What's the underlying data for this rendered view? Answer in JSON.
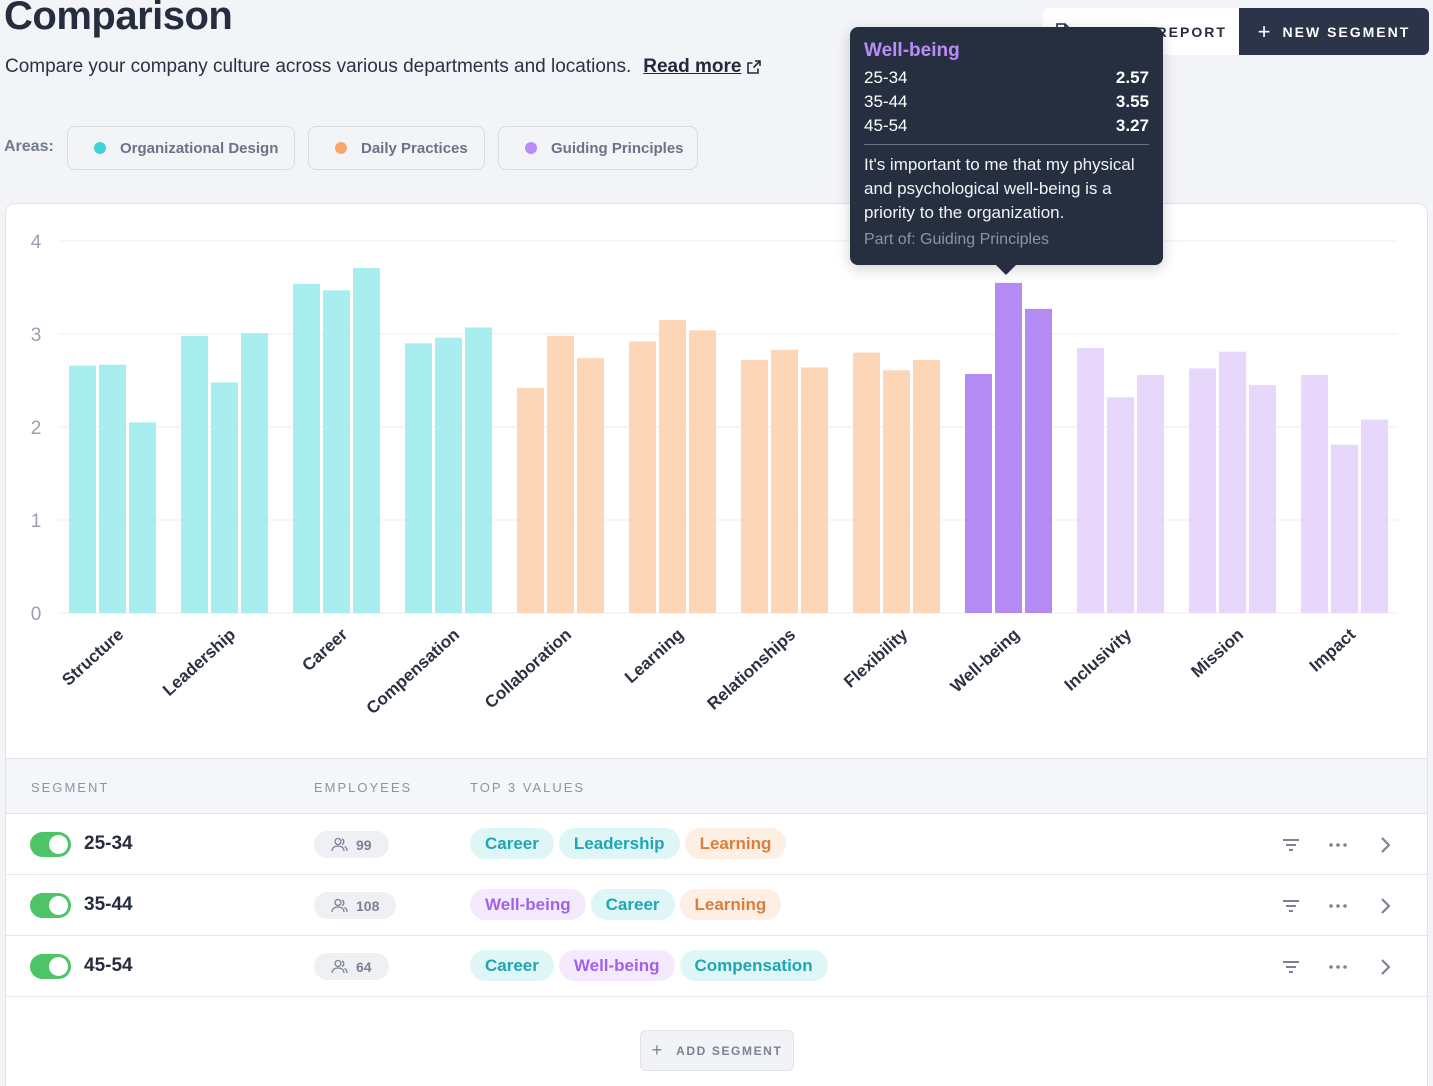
{
  "header": {
    "title": "Comparison",
    "subtitle": "Compare your company culture across various departments and locations.",
    "read_more": "Read more",
    "export_label": "EXPORT REPORT",
    "new_segment_label": "NEW SEGMENT"
  },
  "areas": {
    "label": "Areas:",
    "items": [
      {
        "label": "Organizational Design",
        "color": "#3ed3d9"
      },
      {
        "label": "Daily Practices",
        "color": "#f7a66a"
      },
      {
        "label": "Guiding Principles",
        "color": "#b98cf7"
      }
    ]
  },
  "chart_data": {
    "type": "bar",
    "title": "",
    "xlabel": "",
    "ylabel": "",
    "ylim": [
      0,
      4
    ],
    "yticks": [
      0,
      1,
      2,
      3,
      4
    ],
    "categories": [
      "Structure",
      "Leadership",
      "Career",
      "Compensation",
      "Collaboration",
      "Learning",
      "Relationships",
      "Flexibility",
      "Well-being",
      "Inclusivity",
      "Mission",
      "Impact"
    ],
    "category_area": [
      "Organizational Design",
      "Organizational Design",
      "Organizational Design",
      "Organizational Design",
      "Daily Practices",
      "Daily Practices",
      "Daily Practices",
      "Daily Practices",
      "Guiding Principles",
      "Guiding Principles",
      "Guiding Principles",
      "Guiding Principles"
    ],
    "highlighted_category": "Well-being",
    "series": [
      {
        "name": "25-34",
        "values": [
          2.66,
          2.98,
          3.54,
          2.9,
          2.42,
          2.92,
          2.72,
          2.8,
          2.57,
          2.85,
          2.63,
          2.56
        ]
      },
      {
        "name": "35-44",
        "values": [
          2.67,
          2.48,
          3.47,
          2.96,
          2.98,
          3.15,
          2.83,
          2.61,
          3.55,
          2.32,
          2.81,
          1.81
        ]
      },
      {
        "name": "45-54",
        "values": [
          2.05,
          3.01,
          3.71,
          3.07,
          2.74,
          3.04,
          2.64,
          2.72,
          3.27,
          2.56,
          2.45,
          2.08
        ]
      }
    ],
    "colors": {
      "Organizational Design": "#a8eeee",
      "Daily Practices": "#fdd5b7",
      "Guiding Principles": "#e7d7fb",
      "highlight": "#b48af3"
    }
  },
  "tooltip": {
    "title": "Well-being",
    "rows": [
      {
        "label": "25-34",
        "value": "2.57"
      },
      {
        "label": "35-44",
        "value": "3.55"
      },
      {
        "label": "45-54",
        "value": "3.27"
      }
    ],
    "description": "It's important to me that my physical and psychological well-being is a priority to the organization.",
    "part_of": "Part of: Guiding Principles"
  },
  "table": {
    "headers": {
      "segment": "SEGMENT",
      "employees": "EMPLOYEES",
      "top_values": "TOP 3 VALUES"
    },
    "rows": [
      {
        "name": "25-34",
        "employees": "99",
        "values": [
          {
            "label": "Career",
            "area": "od"
          },
          {
            "label": "Leadership",
            "area": "od"
          },
          {
            "label": "Learning",
            "area": "dp"
          }
        ]
      },
      {
        "name": "35-44",
        "employees": "108",
        "values": [
          {
            "label": "Well-being",
            "area": "gp"
          },
          {
            "label": "Career",
            "area": "od"
          },
          {
            "label": "Learning",
            "area": "dp"
          }
        ]
      },
      {
        "name": "45-54",
        "employees": "64",
        "values": [
          {
            "label": "Career",
            "area": "od"
          },
          {
            "label": "Well-being",
            "area": "gp"
          },
          {
            "label": "Compensation",
            "area": "od"
          }
        ]
      }
    ],
    "add_segment_label": "ADD SEGMENT"
  }
}
